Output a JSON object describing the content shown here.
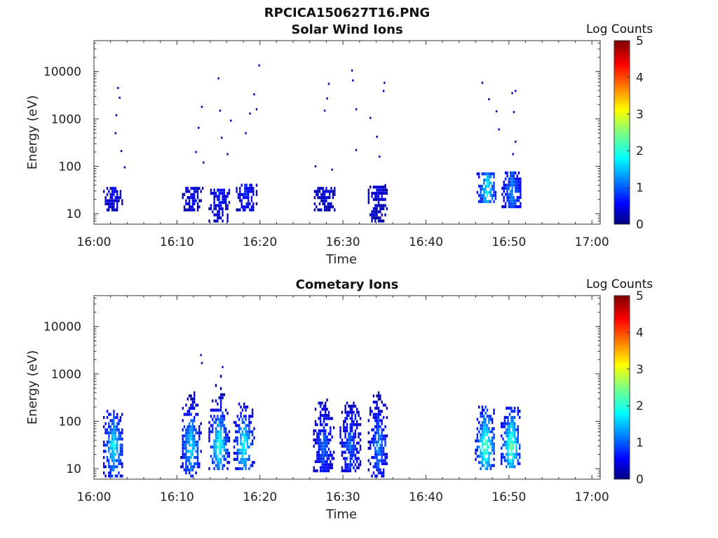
{
  "figure": {
    "title": "RPCICA150627T16.PNG"
  },
  "panels": [
    {
      "title": "Solar Wind Ions",
      "colorbar_label": "Log Counts"
    },
    {
      "title": "Cometary Ions",
      "colorbar_label": "Log Counts"
    }
  ],
  "chart_data": [
    {
      "type": "heatmap",
      "title": "Solar Wind Ions",
      "xlabel": "Time",
      "ylabel": "Energy (eV)",
      "x_ticks": [
        "16:00",
        "16:10",
        "16:20",
        "16:30",
        "16:40",
        "16:50",
        "17:00"
      ],
      "x_tick_minutes": [
        0,
        10,
        20,
        30,
        40,
        50,
        60
      ],
      "xlim_minutes": [
        0,
        61
      ],
      "y_scale": "log",
      "y_ticks": [
        "10",
        "100",
        "1000",
        "10000"
      ],
      "ylim": [
        6,
        45000
      ],
      "colorbar": {
        "label": "Log Counts",
        "range": [
          0,
          5
        ],
        "ticks": [
          "0",
          "1",
          "2",
          "3",
          "4",
          "5"
        ],
        "colormap": "jet"
      },
      "ion_bursts": [
        {
          "minute": 2.3,
          "energy_range": [
            12,
            35
          ],
          "peak_log_counts": 0.4
        },
        {
          "minute": 11.8,
          "energy_range": [
            12,
            35
          ],
          "peak_log_counts": 0.4
        },
        {
          "minute": 15.0,
          "energy_range": [
            7,
            35
          ],
          "peak_log_counts": 0.6
        },
        {
          "minute": 18.3,
          "energy_range": [
            12,
            40
          ],
          "peak_log_counts": 0.6
        },
        {
          "minute": 27.7,
          "energy_range": [
            12,
            35
          ],
          "peak_log_counts": 0.3
        },
        {
          "minute": 34.2,
          "energy_range": [
            7,
            40
          ],
          "peak_log_counts": 0.3
        },
        {
          "minute": 47.3,
          "energy_range": [
            18,
            75
          ],
          "peak_log_counts": 1.8
        },
        {
          "minute": 50.3,
          "energy_range": [
            14,
            75
          ],
          "peak_log_counts": 1.2
        }
      ],
      "scatter_pixels": [
        {
          "minute": 2.6,
          "energy": 1200
        },
        {
          "minute": 2.5,
          "energy": 500
        },
        {
          "minute": 2.8,
          "energy": 4500
        },
        {
          "minute": 3.0,
          "energy": 2800
        },
        {
          "minute": 3.2,
          "energy": 210
        },
        {
          "minute": 3.6,
          "energy": 95
        },
        {
          "minute": 12.2,
          "energy": 200
        },
        {
          "minute": 12.5,
          "energy": 650
        },
        {
          "minute": 12.9,
          "energy": 1800
        },
        {
          "minute": 13.1,
          "energy": 120
        },
        {
          "minute": 14.9,
          "energy": 7200
        },
        {
          "minute": 15.1,
          "energy": 1500
        },
        {
          "minute": 15.3,
          "energy": 400
        },
        {
          "minute": 16.0,
          "energy": 180
        },
        {
          "minute": 16.4,
          "energy": 920
        },
        {
          "minute": 18.2,
          "energy": 500
        },
        {
          "minute": 18.7,
          "energy": 1300
        },
        {
          "minute": 19.2,
          "energy": 3300
        },
        {
          "minute": 19.5,
          "energy": 1600
        },
        {
          "minute": 19.8,
          "energy": 13500
        },
        {
          "minute": 26.6,
          "energy": 100
        },
        {
          "minute": 27.7,
          "energy": 1500
        },
        {
          "minute": 28.0,
          "energy": 2700
        },
        {
          "minute": 28.2,
          "energy": 5500
        },
        {
          "minute": 28.6,
          "energy": 85
        },
        {
          "minute": 31.0,
          "energy": 10500
        },
        {
          "minute": 31.1,
          "energy": 6500
        },
        {
          "minute": 31.5,
          "energy": 1600
        },
        {
          "minute": 31.5,
          "energy": 220
        },
        {
          "minute": 33.2,
          "energy": 1050
        },
        {
          "minute": 34.0,
          "energy": 420
        },
        {
          "minute": 34.3,
          "energy": 160
        },
        {
          "minute": 34.8,
          "energy": 3900
        },
        {
          "minute": 34.9,
          "energy": 5800
        },
        {
          "minute": 35.0,
          "energy": 40
        },
        {
          "minute": 46.7,
          "energy": 5800
        },
        {
          "minute": 47.5,
          "energy": 2600
        },
        {
          "minute": 48.4,
          "energy": 1450
        },
        {
          "minute": 48.7,
          "energy": 600
        },
        {
          "minute": 50.3,
          "energy": 3500
        },
        {
          "minute": 50.5,
          "energy": 1400
        },
        {
          "minute": 50.7,
          "energy": 3900
        },
        {
          "minute": 50.4,
          "energy": 180
        },
        {
          "minute": 50.7,
          "energy": 330
        }
      ]
    },
    {
      "type": "heatmap",
      "title": "Cometary Ions",
      "xlabel": "Time",
      "ylabel": "Energy (eV)",
      "x_ticks": [
        "16:00",
        "16:10",
        "16:20",
        "16:30",
        "16:40",
        "16:50",
        "17:00"
      ],
      "x_tick_minutes": [
        0,
        10,
        20,
        30,
        40,
        50,
        60
      ],
      "xlim_minutes": [
        0,
        61
      ],
      "y_scale": "log",
      "y_ticks": [
        "10",
        "100",
        "1000",
        "10000"
      ],
      "ylim": [
        6,
        45000
      ],
      "colorbar": {
        "label": "Log Counts",
        "range": [
          0,
          5
        ],
        "ticks": [
          "0",
          "1",
          "2",
          "3",
          "4",
          "5"
        ],
        "colormap": "jet"
      },
      "ion_bursts": [
        {
          "minute": 2.3,
          "energy_range": [
            7,
            180
          ],
          "peak_log_counts": 1.8
        },
        {
          "minute": 11.6,
          "energy_range": [
            7,
            420
          ],
          "peak_log_counts": 1.7
        },
        {
          "minute": 15.0,
          "energy_range": [
            10,
            2500
          ],
          "peak_log_counts": 2.0
        },
        {
          "minute": 18.0,
          "energy_range": [
            10,
            240
          ],
          "peak_log_counts": 1.9
        },
        {
          "minute": 27.6,
          "energy_range": [
            9,
            290
          ],
          "peak_log_counts": 1.0
        },
        {
          "minute": 30.8,
          "energy_range": [
            9,
            260
          ],
          "peak_log_counts": 1.0
        },
        {
          "minute": 34.2,
          "energy_range": [
            7,
            450
          ],
          "peak_log_counts": 1.2
        },
        {
          "minute": 47.1,
          "energy_range": [
            10,
            220
          ],
          "peak_log_counts": 2.3
        },
        {
          "minute": 50.2,
          "energy_range": [
            11,
            210
          ],
          "peak_log_counts": 2.3
        }
      ],
      "scatter_pixels": [
        {
          "minute": 12.8,
          "energy": 2500
        },
        {
          "minute": 12.9,
          "energy": 1700
        },
        {
          "minute": 15.4,
          "energy": 1400
        }
      ]
    }
  ]
}
